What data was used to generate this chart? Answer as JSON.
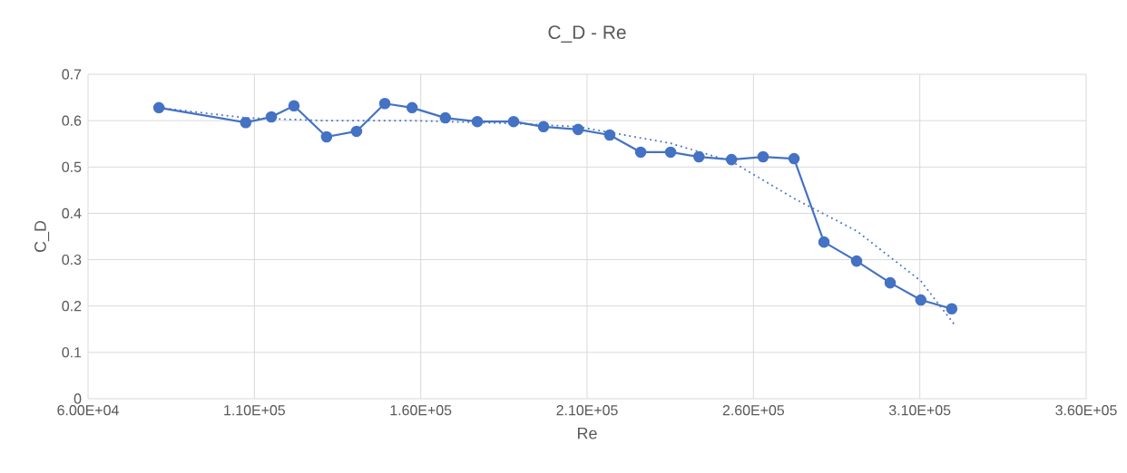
{
  "chart_data": {
    "type": "line",
    "title": "C_D  - Re",
    "xlabel": "Re",
    "ylabel": "C_D",
    "xlim": [
      60000,
      360000
    ],
    "xticks": [
      {
        "value": 60000,
        "label": "6.00E+04"
      },
      {
        "value": 110000,
        "label": "1.10E+05"
      },
      {
        "value": 160000,
        "label": "1.60E+05"
      },
      {
        "value": 210000,
        "label": "2.10E+05"
      },
      {
        "value": 260000,
        "label": "2.60E+05"
      },
      {
        "value": 310000,
        "label": "3.10E+05"
      },
      {
        "value": 360000,
        "label": "3.60E+05"
      }
    ],
    "ylim": [
      0,
      0.7
    ],
    "yticks": [
      0,
      0.1,
      0.2,
      0.3,
      0.4,
      0.5,
      0.6,
      0.7
    ],
    "grid": true,
    "marker": "circle",
    "line_style": "solid",
    "series": [
      {
        "color": "#4472c4",
        "x": [
          81300,
          107400,
          115100,
          121900,
          131700,
          140700,
          149200,
          157400,
          167400,
          177000,
          187900,
          196900,
          207300,
          216800,
          226100,
          235100,
          243600,
          253400,
          262900,
          272200,
          281200,
          291000,
          301100,
          310300,
          319600
        ],
        "values": [
          0.628,
          0.596,
          0.608,
          0.632,
          0.565,
          0.577,
          0.637,
          0.628,
          0.606,
          0.598,
          0.598,
          0.587,
          0.581,
          0.569,
          0.532,
          0.532,
          0.522,
          0.516,
          0.522,
          0.518,
          0.338,
          0.297,
          0.25,
          0.213,
          0.194
        ]
      },
      {
        "type": "line",
        "color": "#4472c4",
        "line_style": "dotted",
        "marker": "none",
        "x": [
          81300,
          107400,
          131700,
          157400,
          187900,
          207300,
          235100,
          253400,
          272200,
          291000,
          310300,
          320400
        ],
        "values": [
          0.628,
          0.606,
          0.6,
          0.6,
          0.594,
          0.587,
          0.551,
          0.512,
          0.432,
          0.362,
          0.254,
          0.16
        ]
      }
    ]
  }
}
